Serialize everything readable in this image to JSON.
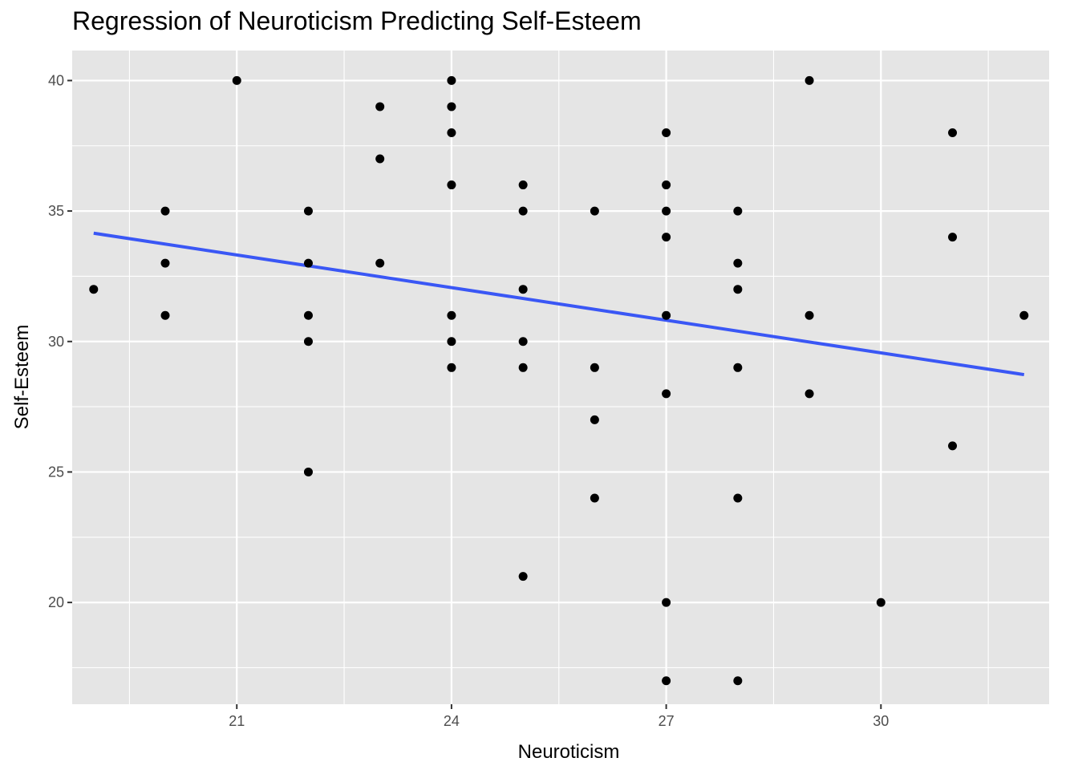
{
  "chart_data": {
    "type": "scatter",
    "title": "Regression of Neuroticism Predicting Self-Esteem",
    "xlabel": "Neuroticism",
    "ylabel": "Self-Esteem",
    "xlim": [
      18.7,
      32.35
    ],
    "ylim": [
      16.1,
      41.15
    ],
    "x_ticks": [
      21,
      24,
      27,
      30
    ],
    "y_ticks": [
      20,
      25,
      30,
      35,
      40
    ],
    "x_tick_labels": [
      "21",
      "24",
      "27",
      "30"
    ],
    "y_tick_labels": [
      "20",
      "25",
      "30",
      "35",
      "40"
    ],
    "grid": true,
    "legend": "none",
    "colors": {
      "panel": "#e5e5e5",
      "grid": "#ffffff",
      "points": "#000000",
      "fit_line": "#3a57f5"
    },
    "points": [
      {
        "x": 19,
        "y": 32
      },
      {
        "x": 20,
        "y": 35
      },
      {
        "x": 20,
        "y": 33
      },
      {
        "x": 20,
        "y": 31
      },
      {
        "x": 21,
        "y": 40
      },
      {
        "x": 22,
        "y": 35
      },
      {
        "x": 22,
        "y": 33
      },
      {
        "x": 22,
        "y": 31
      },
      {
        "x": 22,
        "y": 30
      },
      {
        "x": 22,
        "y": 25
      },
      {
        "x": 23,
        "y": 39
      },
      {
        "x": 23,
        "y": 37
      },
      {
        "x": 23,
        "y": 33
      },
      {
        "x": 24,
        "y": 40
      },
      {
        "x": 24,
        "y": 39
      },
      {
        "x": 24,
        "y": 38
      },
      {
        "x": 24,
        "y": 36
      },
      {
        "x": 24,
        "y": 31
      },
      {
        "x": 24,
        "y": 30
      },
      {
        "x": 24,
        "y": 29
      },
      {
        "x": 25,
        "y": 36
      },
      {
        "x": 25,
        "y": 35
      },
      {
        "x": 25,
        "y": 32
      },
      {
        "x": 25,
        "y": 30
      },
      {
        "x": 25,
        "y": 29
      },
      {
        "x": 25,
        "y": 21
      },
      {
        "x": 26,
        "y": 35
      },
      {
        "x": 26,
        "y": 29
      },
      {
        "x": 26,
        "y": 27
      },
      {
        "x": 26,
        "y": 24
      },
      {
        "x": 27,
        "y": 38
      },
      {
        "x": 27,
        "y": 36
      },
      {
        "x": 27,
        "y": 35
      },
      {
        "x": 27,
        "y": 34
      },
      {
        "x": 27,
        "y": 31
      },
      {
        "x": 27,
        "y": 28
      },
      {
        "x": 27,
        "y": 20
      },
      {
        "x": 27,
        "y": 17
      },
      {
        "x": 28,
        "y": 35
      },
      {
        "x": 28,
        "y": 33
      },
      {
        "x": 28,
        "y": 32
      },
      {
        "x": 28,
        "y": 29
      },
      {
        "x": 28,
        "y": 24
      },
      {
        "x": 28,
        "y": 17
      },
      {
        "x": 29,
        "y": 40
      },
      {
        "x": 29,
        "y": 31
      },
      {
        "x": 29,
        "y": 28
      },
      {
        "x": 30,
        "y": 20
      },
      {
        "x": 31,
        "y": 38
      },
      {
        "x": 31,
        "y": 34
      },
      {
        "x": 31,
        "y": 26
      },
      {
        "x": 32,
        "y": 31
      }
    ],
    "fit_line": {
      "x": [
        19,
        32
      ],
      "y": [
        34.15,
        28.73
      ]
    }
  }
}
